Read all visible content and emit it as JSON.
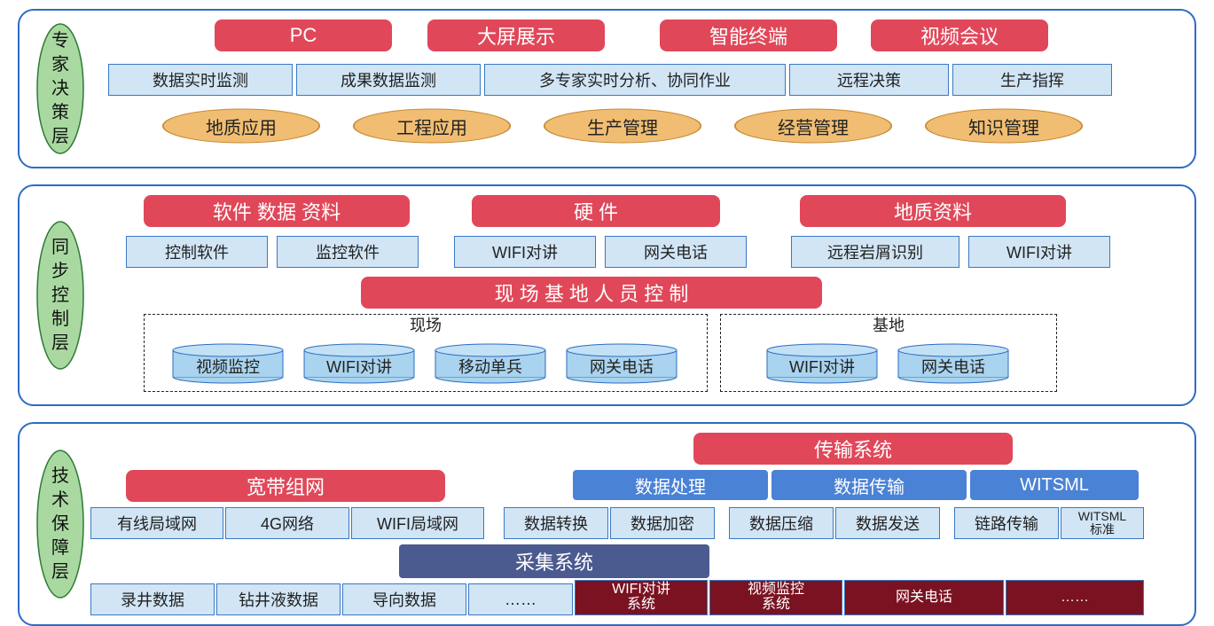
{
  "colors": {
    "frame_border": "#2c6cc4",
    "label_fill": "#a9d9a1",
    "label_stroke": "#2c7a34",
    "pill_bg": "#e0485a",
    "pill_fg": "#ffffff",
    "bluecell_bg": "#d1e5f5",
    "bluecell_border": "#3a78c4",
    "ellipse_fill": "#f0bd72",
    "ellipse_stroke": "#c78a34",
    "cylinder_fill": "#a9d3ee",
    "cylinder_stroke": "#2c6cc4",
    "midblue_bg": "#4a82d6",
    "navy_bg": "#4b5a8f",
    "dark_bg": "#7a1221"
  },
  "expert": {
    "title": "专家决策层",
    "top_pills": [
      "PC",
      "大屏展示",
      "智能终端",
      "视频会议"
    ],
    "blue_cells": [
      "数据实时监测",
      "成果数据监测",
      "多专家实时分析、协同作业",
      "远程决策",
      "生产指挥"
    ],
    "ellipses": [
      "地质应用",
      "工程应用",
      "生产管理",
      "经营管理",
      "知识管理"
    ]
  },
  "sync": {
    "title": "同步控制层",
    "groups": [
      {
        "pill": "软件  数据  资料",
        "cells": [
          "控制软件",
          "监控软件"
        ]
      },
      {
        "pill": "硬        件",
        "cells": [
          "WIFI对讲",
          "网关电话"
        ]
      },
      {
        "pill": "地质资料",
        "cells": [
          "远程岩屑识别",
          "WIFI对讲"
        ]
      }
    ],
    "center_pill": "现 场 基 地 人 员 控 制",
    "site_box": {
      "title": "现场",
      "cyls": [
        "视频监控",
        "WIFI对讲",
        "移动单兵",
        "网关电话"
      ]
    },
    "base_box": {
      "title": "基地",
      "cyls": [
        "WIFI对讲",
        "网关电话"
      ]
    }
  },
  "tech": {
    "title": "技术保障层",
    "pill_trans": "传输系统",
    "pill_band": "宽带组网",
    "mid_headers": [
      "数据处理",
      "数据传输",
      "WITSML"
    ],
    "band_cells": [
      "有线局域网",
      "4G网络",
      "WIFI局域网"
    ],
    "trans_cells": [
      "数据转换",
      "数据加密",
      "数据压缩",
      "数据发送",
      "链路传输",
      "WITSML\n标准"
    ],
    "navy_bar": "采集系统",
    "bottom_blue": [
      "录井数据",
      "钻井液数据",
      "导向数据",
      "……"
    ],
    "bottom_dark": [
      "WIFI对讲\n系统",
      "视频监控\n系统",
      "网关电话",
      "……"
    ]
  }
}
